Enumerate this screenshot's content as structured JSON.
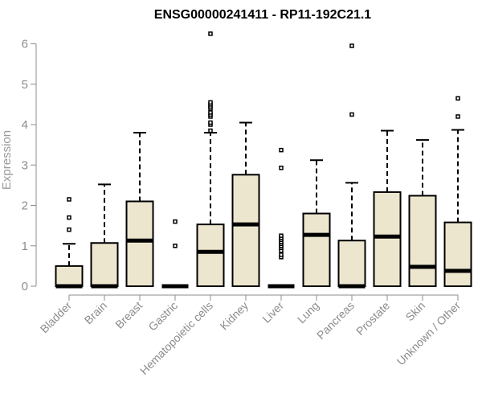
{
  "chart_data": {
    "type": "boxplot",
    "title": "ENSG00000241411 - RP11-192C21.1",
    "xlabel": "",
    "ylabel": "Expression",
    "ylim": [
      0,
      6.2
    ],
    "yticks": [
      0,
      1,
      2,
      3,
      4,
      5,
      6
    ],
    "box_fill": "#ede6cf",
    "grid": false,
    "categories": [
      "Bladder",
      "Brain",
      "Breast",
      "Gastric",
      "Hematopoietic cells",
      "Kidney",
      "Liver",
      "Lung",
      "Pancreas",
      "Prostate",
      "Skin",
      "Unknown / Other"
    ],
    "boxes": [
      {
        "category": "Bladder",
        "whisker_low": 0,
        "q1": 0,
        "median": 0,
        "q3": 0.5,
        "whisker_high": 1.05,
        "outliers": [
          1.4,
          1.7,
          2.15
        ]
      },
      {
        "category": "Brain",
        "whisker_low": 0,
        "q1": 0,
        "median": 0,
        "q3": 1.07,
        "whisker_high": 2.52,
        "outliers": []
      },
      {
        "category": "Breast",
        "whisker_low": 0,
        "q1": 0,
        "median": 1.13,
        "q3": 2.1,
        "whisker_high": 3.8,
        "outliers": []
      },
      {
        "category": "Gastric",
        "whisker_low": 0,
        "q1": 0,
        "median": 0,
        "q3": 0,
        "whisker_high": 0,
        "outliers": [
          1.0,
          1.6
        ]
      },
      {
        "category": "Hematopoietic cells",
        "whisker_low": 0,
        "q1": 0,
        "median": 0.85,
        "q3": 1.53,
        "whisker_high": 3.8,
        "outliers": [
          3.85,
          4.0,
          4.05,
          4.2,
          4.25,
          4.3,
          4.4,
          4.45,
          4.5,
          4.55,
          6.25
        ]
      },
      {
        "category": "Kidney",
        "whisker_low": 0,
        "q1": 0,
        "median": 1.53,
        "q3": 2.76,
        "whisker_high": 4.05,
        "outliers": []
      },
      {
        "category": "Liver",
        "whisker_low": 0,
        "q1": 0,
        "median": 0,
        "q3": 0,
        "whisker_high": 0,
        "outliers": [
          0.72,
          0.78,
          0.88,
          0.95,
          1.0,
          1.05,
          1.1,
          1.15,
          1.2,
          1.25,
          2.93,
          3.37
        ]
      },
      {
        "category": "Lung",
        "whisker_low": 0,
        "q1": 0,
        "median": 1.27,
        "q3": 1.8,
        "whisker_high": 3.12,
        "outliers": []
      },
      {
        "category": "Pancreas",
        "whisker_low": 0,
        "q1": 0,
        "median": 0,
        "q3": 1.13,
        "whisker_high": 2.56,
        "outliers": [
          4.25,
          5.95
        ]
      },
      {
        "category": "Prostate",
        "whisker_low": 0,
        "q1": 0,
        "median": 1.23,
        "q3": 2.33,
        "whisker_high": 3.85,
        "outliers": []
      },
      {
        "category": "Skin",
        "whisker_low": 0,
        "q1": 0,
        "median": 0.48,
        "q3": 2.24,
        "whisker_high": 3.62,
        "outliers": []
      },
      {
        "category": "Unknown / Other",
        "whisker_low": 0,
        "q1": 0,
        "median": 0.38,
        "q3": 1.58,
        "whisker_high": 3.87,
        "outliers": [
          4.2,
          4.65
        ]
      }
    ]
  }
}
